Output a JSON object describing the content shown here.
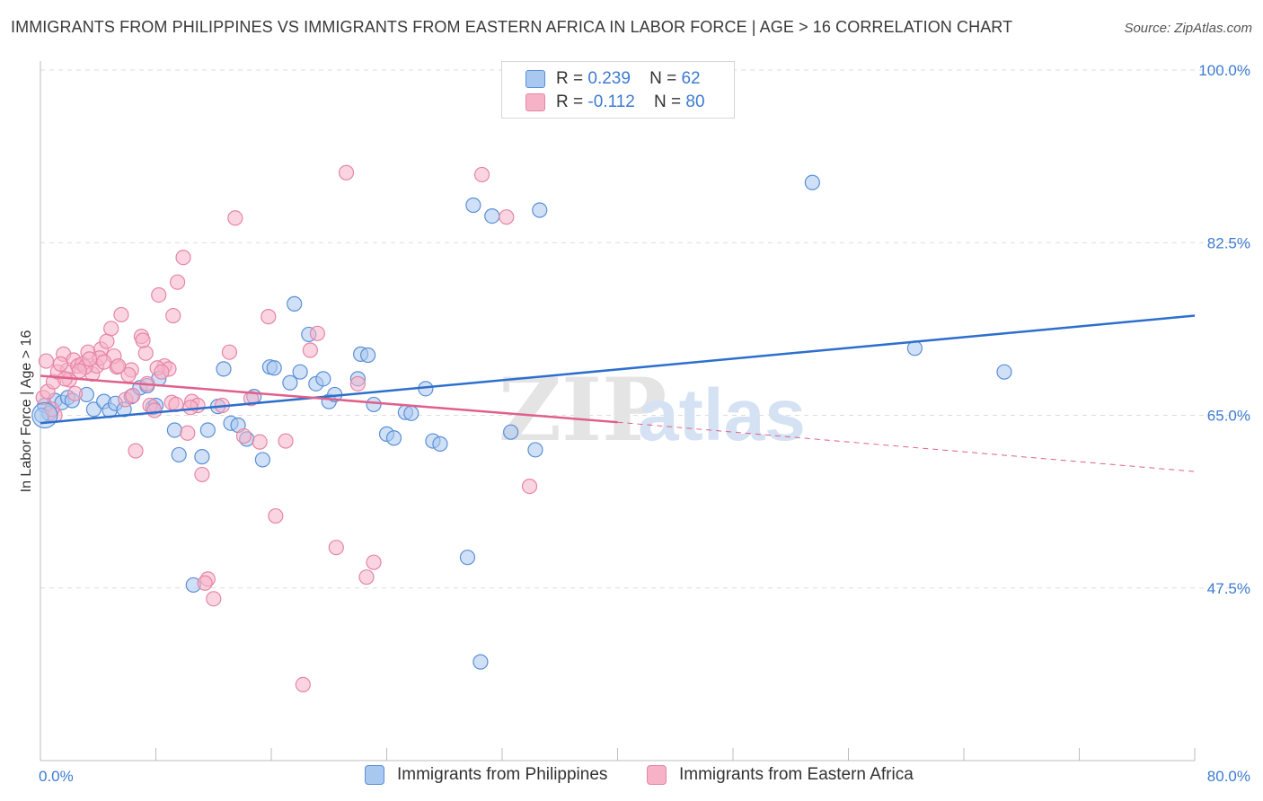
{
  "header": {
    "title": "IMMIGRANTS FROM PHILIPPINES VS IMMIGRANTS FROM EASTERN AFRICA IN LABOR FORCE | AGE > 16 CORRELATION CHART",
    "source": "Source: ZipAtlas.com"
  },
  "watermark": {
    "zip": "ZIP",
    "atlas": "atlas"
  },
  "legend": {
    "rows": [
      {
        "r_label": "R =",
        "r_value": "0.239",
        "n_label": "N =",
        "n_value": "62"
      },
      {
        "r_label": "R =",
        "r_value": "-0.112",
        "n_label": "N =",
        "n_value": "80"
      }
    ]
  },
  "colors": {
    "blue_fill": "#a9c8f0",
    "blue_stroke": "#5b8fd6",
    "blue_line": "#2d6fcc",
    "pink_fill": "#f6b3c8",
    "pink_stroke": "#e685a6",
    "pink_line": "#e0608a",
    "axis_label": "#3d7bd0",
    "grid": "#dddddd"
  },
  "chart_data": {
    "type": "scatter",
    "title": "IMMIGRANTS FROM PHILIPPINES VS IMMIGRANTS FROM EASTERN AFRICA IN LABOR FORCE | AGE > 16 CORRELATION CHART",
    "xlabel": "",
    "ylabel": "In Labor Force | Age > 16",
    "xlim": [
      0,
      80
    ],
    "ylim": [
      30,
      100
    ],
    "x_tick_labels": [
      "0.0%",
      "80.0%"
    ],
    "y_ticks": [
      47.5,
      65.0,
      82.5,
      100.0
    ],
    "y_tick_labels": [
      "47.5%",
      "65.0%",
      "82.5%",
      "100.0%"
    ],
    "grid": true,
    "legend_position": "top-center",
    "series": [
      {
        "name": "Immigrants from Philippines",
        "color": "#5b8fd6",
        "points": [
          [
            0.3,
            66.0
          ],
          [
            0.6,
            65.2
          ],
          [
            1.0,
            66.5
          ],
          [
            1.5,
            66.3
          ],
          [
            1.9,
            66.8
          ],
          [
            3.2,
            67.1
          ],
          [
            3.7,
            65.6
          ],
          [
            4.4,
            66.4
          ],
          [
            4.8,
            65.5
          ],
          [
            5.2,
            66.2
          ],
          [
            5.8,
            65.6
          ],
          [
            6.3,
            66.9
          ],
          [
            6.9,
            67.8
          ],
          [
            7.4,
            68.0
          ],
          [
            7.8,
            65.8
          ],
          [
            8.2,
            68.7
          ],
          [
            9.3,
            63.5
          ],
          [
            9.6,
            61.0
          ],
          [
            11.2,
            60.8
          ],
          [
            11.6,
            63.5
          ],
          [
            12.3,
            65.9
          ],
          [
            12.7,
            69.7
          ],
          [
            13.2,
            64.2
          ],
          [
            13.7,
            64.0
          ],
          [
            14.3,
            62.6
          ],
          [
            14.8,
            66.9
          ],
          [
            15.4,
            60.5
          ],
          [
            15.9,
            69.9
          ],
          [
            16.2,
            69.8
          ],
          [
            17.3,
            68.3
          ],
          [
            17.6,
            76.3
          ],
          [
            18.0,
            69.4
          ],
          [
            18.6,
            73.2
          ],
          [
            19.1,
            68.2
          ],
          [
            19.6,
            68.7
          ],
          [
            20.0,
            66.4
          ],
          [
            20.4,
            67.1
          ],
          [
            22.0,
            68.7
          ],
          [
            22.2,
            71.2
          ],
          [
            22.7,
            71.1
          ],
          [
            23.1,
            66.1
          ],
          [
            24.0,
            63.1
          ],
          [
            24.5,
            62.7
          ],
          [
            25.3,
            65.3
          ],
          [
            25.7,
            65.2
          ],
          [
            26.7,
            67.7
          ],
          [
            27.2,
            62.4
          ],
          [
            27.7,
            62.1
          ],
          [
            29.6,
            50.6
          ],
          [
            30.0,
            86.3
          ],
          [
            30.5,
            40.0
          ],
          [
            31.3,
            85.2
          ],
          [
            32.6,
            63.3
          ],
          [
            34.3,
            61.5
          ],
          [
            34.6,
            85.8
          ],
          [
            53.5,
            88.6
          ],
          [
            60.6,
            71.8
          ],
          [
            66.8,
            69.4
          ],
          [
            10.6,
            47.8
          ],
          [
            0.1,
            65.0
          ],
          [
            2.2,
            66.5
          ],
          [
            8.0,
            66.0
          ]
        ]
      },
      {
        "name": "Immigrants from Eastern Africa",
        "color": "#e685a6",
        "points": [
          [
            0.2,
            66.8
          ],
          [
            0.5,
            67.4
          ],
          [
            0.9,
            68.4
          ],
          [
            1.2,
            69.4
          ],
          [
            1.6,
            71.2
          ],
          [
            1.9,
            69.6
          ],
          [
            2.3,
            70.6
          ],
          [
            2.6,
            70.0
          ],
          [
            2.9,
            70.2
          ],
          [
            3.3,
            71.4
          ],
          [
            3.6,
            69.2
          ],
          [
            3.9,
            70.0
          ],
          [
            4.2,
            71.7
          ],
          [
            4.6,
            72.5
          ],
          [
            4.9,
            73.8
          ],
          [
            5.3,
            69.9
          ],
          [
            5.6,
            75.2
          ],
          [
            5.9,
            66.6
          ],
          [
            6.3,
            69.6
          ],
          [
            6.6,
            61.4
          ],
          [
            7.0,
            73.0
          ],
          [
            7.3,
            71.3
          ],
          [
            7.6,
            66.0
          ],
          [
            7.9,
            65.5
          ],
          [
            8.2,
            77.2
          ],
          [
            8.6,
            70.0
          ],
          [
            8.9,
            69.7
          ],
          [
            9.2,
            75.1
          ],
          [
            9.5,
            78.5
          ],
          [
            9.9,
            81.0
          ],
          [
            10.2,
            63.2
          ],
          [
            10.5,
            66.4
          ],
          [
            10.9,
            66.0
          ],
          [
            11.2,
            59.0
          ],
          [
            11.6,
            48.4
          ],
          [
            12.0,
            46.4
          ],
          [
            12.6,
            66.0
          ],
          [
            13.1,
            71.4
          ],
          [
            13.5,
            85.0
          ],
          [
            14.1,
            62.9
          ],
          [
            14.6,
            66.7
          ],
          [
            15.2,
            62.3
          ],
          [
            15.8,
            75.0
          ],
          [
            16.3,
            54.8
          ],
          [
            17.0,
            62.4
          ],
          [
            18.2,
            37.7
          ],
          [
            18.7,
            71.6
          ],
          [
            19.2,
            73.3
          ],
          [
            20.5,
            51.6
          ],
          [
            21.2,
            89.6
          ],
          [
            22.0,
            68.2
          ],
          [
            22.6,
            48.6
          ],
          [
            23.1,
            50.1
          ],
          [
            30.6,
            89.4
          ],
          [
            32.3,
            85.1
          ],
          [
            33.9,
            57.8
          ],
          [
            1.0,
            65.0
          ],
          [
            2.0,
            68.6
          ],
          [
            3.1,
            69.9
          ],
          [
            4.1,
            70.8
          ],
          [
            5.1,
            71.0
          ],
          [
            6.1,
            69.1
          ],
          [
            7.1,
            72.6
          ],
          [
            8.1,
            69.8
          ],
          [
            9.1,
            66.3
          ],
          [
            0.4,
            70.5
          ],
          [
            1.4,
            70.2
          ],
          [
            2.4,
            67.2
          ],
          [
            3.4,
            70.7
          ],
          [
            4.4,
            70.4
          ],
          [
            5.4,
            70.0
          ],
          [
            6.4,
            67.0
          ],
          [
            7.4,
            68.2
          ],
          [
            8.4,
            69.4
          ],
          [
            9.4,
            66.1
          ],
          [
            10.4,
            65.8
          ],
          [
            11.4,
            48.0
          ],
          [
            0.8,
            65.6
          ],
          [
            1.7,
            68.7
          ],
          [
            2.7,
            69.5
          ]
        ]
      }
    ],
    "trend_lines": [
      {
        "series": "Immigrants from Philippines",
        "x": [
          0,
          80
        ],
        "y": [
          64.2,
          75.1
        ],
        "style": "solid"
      },
      {
        "series": "Immigrants from Eastern Africa",
        "x": [
          0,
          40
        ],
        "y": [
          69.0,
          64.3
        ],
        "style": "solid"
      },
      {
        "series": "Immigrants from Eastern Africa",
        "x": [
          40,
          80
        ],
        "y": [
          64.3,
          59.3
        ],
        "style": "dashed"
      }
    ]
  },
  "bottom_legend": {
    "items": [
      {
        "label": "Immigrants from Philippines"
      },
      {
        "label": "Immigrants from Eastern Africa"
      }
    ]
  }
}
